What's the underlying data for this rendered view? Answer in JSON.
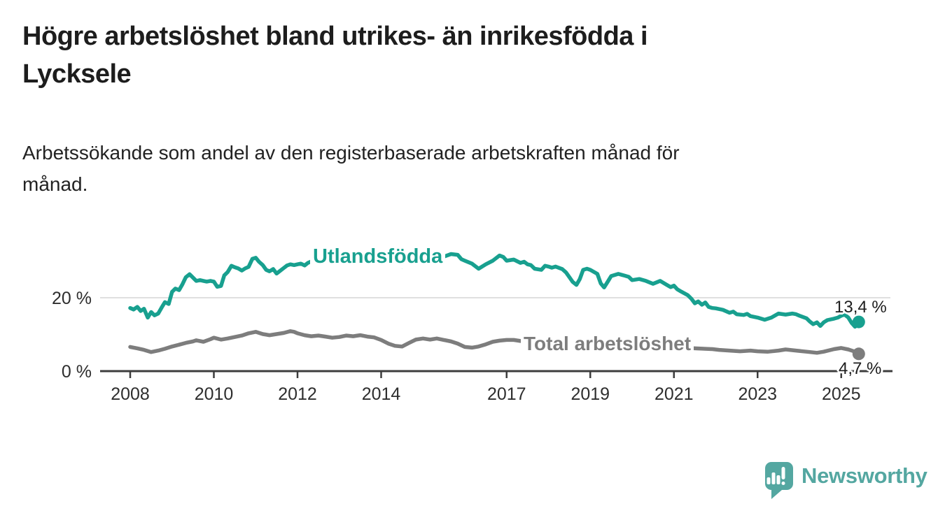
{
  "header": {
    "title": "Högre arbetslöshet bland utrikes- än inrikesfödda i\nLycksele",
    "subtitle": "Arbetssökande som andel av den registerbaserade arbetskraften månad för\nmånad."
  },
  "chart_data": {
    "type": "line",
    "title": "Högre arbetslöshet bland utrikes- än inrikesfödda i Lycksele",
    "subtitle": "Arbetssökande som andel av den registerbaserade arbetskraften månad för månad.",
    "unit": "%",
    "x_axis": {
      "ticks": [
        2008,
        2010,
        2012,
        2014,
        2017,
        2019,
        2021,
        2023,
        2025
      ],
      "range": [
        2008,
        2025.7
      ]
    },
    "y_axis": {
      "ticks": [
        {
          "value": 0,
          "label": "0 %"
        },
        {
          "value": 20,
          "label": "20 %"
        }
      ],
      "range": [
        0,
        34
      ]
    },
    "grid": "horizontal, only at 20 %",
    "legend": "inline series labels",
    "series": [
      {
        "name": "Utlandsfödda",
        "color": "#18a08f",
        "end_label": "13,4 %",
        "end_value": 13.4,
        "points": [
          [
            2008.0,
            17.2
          ],
          [
            2008.08,
            16.8
          ],
          [
            2008.17,
            17.5
          ],
          [
            2008.25,
            16.4
          ],
          [
            2008.33,
            17.0
          ],
          [
            2008.42,
            14.6
          ],
          [
            2008.5,
            16.1
          ],
          [
            2008.58,
            15.2
          ],
          [
            2008.67,
            15.7
          ],
          [
            2008.75,
            17.3
          ],
          [
            2008.83,
            18.8
          ],
          [
            2008.92,
            18.3
          ],
          [
            2009.0,
            21.6
          ],
          [
            2009.08,
            22.5
          ],
          [
            2009.17,
            22.1
          ],
          [
            2009.25,
            23.7
          ],
          [
            2009.33,
            25.6
          ],
          [
            2009.42,
            26.4
          ],
          [
            2009.5,
            25.5
          ],
          [
            2009.58,
            24.6
          ],
          [
            2009.67,
            24.8
          ],
          [
            2009.75,
            24.6
          ],
          [
            2009.83,
            24.4
          ],
          [
            2009.92,
            24.6
          ],
          [
            2010.0,
            24.4
          ],
          [
            2010.08,
            23.0
          ],
          [
            2010.17,
            23.2
          ],
          [
            2010.25,
            26.1
          ],
          [
            2010.33,
            27.0
          ],
          [
            2010.42,
            28.7
          ],
          [
            2010.5,
            28.3
          ],
          [
            2010.58,
            28.0
          ],
          [
            2010.67,
            27.4
          ],
          [
            2010.75,
            28.0
          ],
          [
            2010.83,
            28.4
          ],
          [
            2010.92,
            30.6
          ],
          [
            2011.0,
            30.9
          ],
          [
            2011.08,
            29.8
          ],
          [
            2011.17,
            28.9
          ],
          [
            2011.25,
            27.6
          ],
          [
            2011.33,
            27.2
          ],
          [
            2011.42,
            27.8
          ],
          [
            2011.5,
            26.6
          ],
          [
            2011.58,
            27.3
          ],
          [
            2011.67,
            28.1
          ],
          [
            2011.75,
            28.8
          ],
          [
            2011.83,
            29.1
          ],
          [
            2011.92,
            28.9
          ],
          [
            2012.0,
            29.1
          ],
          [
            2012.08,
            29.3
          ],
          [
            2012.17,
            28.8
          ],
          [
            2012.25,
            29.5
          ],
          [
            2012.33,
            29.9
          ],
          [
            2012.5,
            30.5
          ],
          [
            2012.67,
            29.7
          ],
          [
            2012.83,
            29.1
          ],
          [
            2013.0,
            29.6
          ],
          [
            2013.17,
            30.3
          ],
          [
            2013.33,
            29.5
          ],
          [
            2013.5,
            28.7
          ],
          [
            2013.67,
            29.3
          ],
          [
            2013.83,
            30.1
          ],
          [
            2014.0,
            29.7
          ],
          [
            2014.17,
            30.5
          ],
          [
            2014.33,
            29.1
          ],
          [
            2014.5,
            28.5
          ],
          [
            2014.67,
            29.3
          ],
          [
            2014.83,
            29.9
          ],
          [
            2015.0,
            30.3
          ],
          [
            2015.17,
            30.9
          ],
          [
            2015.33,
            30.1
          ],
          [
            2015.5,
            31.2
          ],
          [
            2015.67,
            31.9
          ],
          [
            2015.83,
            31.7
          ],
          [
            2015.92,
            30.5
          ],
          [
            2016.0,
            30.1
          ],
          [
            2016.17,
            29.3
          ],
          [
            2016.33,
            27.9
          ],
          [
            2016.5,
            29.1
          ],
          [
            2016.67,
            30.1
          ],
          [
            2016.83,
            31.5
          ],
          [
            2016.92,
            31.1
          ],
          [
            2017.0,
            30.1
          ],
          [
            2017.17,
            30.4
          ],
          [
            2017.33,
            29.5
          ],
          [
            2017.42,
            29.8
          ],
          [
            2017.5,
            29.1
          ],
          [
            2017.58,
            28.9
          ],
          [
            2017.67,
            27.9
          ],
          [
            2017.83,
            27.6
          ],
          [
            2017.92,
            28.7
          ],
          [
            2018.0,
            28.5
          ],
          [
            2018.08,
            28.2
          ],
          [
            2018.17,
            28.5
          ],
          [
            2018.33,
            27.8
          ],
          [
            2018.42,
            26.9
          ],
          [
            2018.5,
            25.6
          ],
          [
            2018.58,
            24.3
          ],
          [
            2018.67,
            23.5
          ],
          [
            2018.75,
            25.1
          ],
          [
            2018.83,
            27.6
          ],
          [
            2018.92,
            27.9
          ],
          [
            2019.0,
            27.6
          ],
          [
            2019.17,
            26.5
          ],
          [
            2019.25,
            23.9
          ],
          [
            2019.33,
            22.8
          ],
          [
            2019.42,
            24.4
          ],
          [
            2019.5,
            25.9
          ],
          [
            2019.67,
            26.5
          ],
          [
            2019.83,
            26.0
          ],
          [
            2019.92,
            25.7
          ],
          [
            2020.0,
            24.8
          ],
          [
            2020.17,
            25.1
          ],
          [
            2020.33,
            24.6
          ],
          [
            2020.5,
            23.8
          ],
          [
            2020.67,
            24.6
          ],
          [
            2020.83,
            23.5
          ],
          [
            2020.92,
            22.9
          ],
          [
            2021.0,
            23.3
          ],
          [
            2021.08,
            22.3
          ],
          [
            2021.17,
            21.7
          ],
          [
            2021.33,
            20.7
          ],
          [
            2021.42,
            19.7
          ],
          [
            2021.5,
            18.5
          ],
          [
            2021.58,
            19.0
          ],
          [
            2021.67,
            18.1
          ],
          [
            2021.75,
            18.7
          ],
          [
            2021.83,
            17.5
          ],
          [
            2021.92,
            17.2
          ],
          [
            2022.0,
            17.1
          ],
          [
            2022.17,
            16.7
          ],
          [
            2022.33,
            15.9
          ],
          [
            2022.42,
            16.2
          ],
          [
            2022.5,
            15.5
          ],
          [
            2022.67,
            15.3
          ],
          [
            2022.75,
            15.6
          ],
          [
            2022.83,
            15.0
          ],
          [
            2023.0,
            14.6
          ],
          [
            2023.17,
            14.0
          ],
          [
            2023.33,
            14.6
          ],
          [
            2023.5,
            15.7
          ],
          [
            2023.67,
            15.4
          ],
          [
            2023.83,
            15.7
          ],
          [
            2023.92,
            15.5
          ],
          [
            2024.0,
            15.1
          ],
          [
            2024.17,
            14.4
          ],
          [
            2024.25,
            13.5
          ],
          [
            2024.33,
            12.8
          ],
          [
            2024.42,
            13.3
          ],
          [
            2024.5,
            12.3
          ],
          [
            2024.58,
            13.3
          ],
          [
            2024.67,
            13.9
          ],
          [
            2024.83,
            14.3
          ],
          [
            2024.92,
            14.6
          ],
          [
            2025.0,
            15.1
          ],
          [
            2025.08,
            15.4
          ],
          [
            2025.17,
            14.6
          ],
          [
            2025.25,
            13.1
          ],
          [
            2025.33,
            12.1
          ],
          [
            2025.42,
            13.4
          ]
        ]
      },
      {
        "name": "Total arbetslöshet",
        "color": "#7d7d7d",
        "end_label": "4,7 %",
        "end_value": 4.7,
        "points": [
          [
            2008.0,
            6.6
          ],
          [
            2008.17,
            6.2
          ],
          [
            2008.33,
            5.8
          ],
          [
            2008.5,
            5.2
          ],
          [
            2008.67,
            5.6
          ],
          [
            2008.83,
            6.1
          ],
          [
            2009.0,
            6.7
          ],
          [
            2009.17,
            7.2
          ],
          [
            2009.33,
            7.7
          ],
          [
            2009.5,
            8.1
          ],
          [
            2009.58,
            8.4
          ],
          [
            2009.75,
            8.0
          ],
          [
            2009.92,
            8.7
          ],
          [
            2010.0,
            9.1
          ],
          [
            2010.17,
            8.6
          ],
          [
            2010.33,
            8.9
          ],
          [
            2010.5,
            9.3
          ],
          [
            2010.67,
            9.7
          ],
          [
            2010.83,
            10.3
          ],
          [
            2011.0,
            10.7
          ],
          [
            2011.17,
            10.1
          ],
          [
            2011.33,
            9.8
          ],
          [
            2011.5,
            10.1
          ],
          [
            2011.67,
            10.4
          ],
          [
            2011.83,
            10.9
          ],
          [
            2011.92,
            10.7
          ],
          [
            2012.0,
            10.3
          ],
          [
            2012.17,
            9.8
          ],
          [
            2012.33,
            9.5
          ],
          [
            2012.5,
            9.7
          ],
          [
            2012.67,
            9.4
          ],
          [
            2012.83,
            9.1
          ],
          [
            2013.0,
            9.3
          ],
          [
            2013.17,
            9.7
          ],
          [
            2013.33,
            9.5
          ],
          [
            2013.5,
            9.8
          ],
          [
            2013.67,
            9.4
          ],
          [
            2013.83,
            9.2
          ],
          [
            2014.0,
            8.5
          ],
          [
            2014.17,
            7.5
          ],
          [
            2014.33,
            6.9
          ],
          [
            2014.5,
            6.7
          ],
          [
            2014.67,
            7.7
          ],
          [
            2014.83,
            8.6
          ],
          [
            2015.0,
            8.9
          ],
          [
            2015.17,
            8.6
          ],
          [
            2015.33,
            8.9
          ],
          [
            2015.5,
            8.5
          ],
          [
            2015.67,
            8.1
          ],
          [
            2015.83,
            7.5
          ],
          [
            2016.0,
            6.6
          ],
          [
            2016.17,
            6.4
          ],
          [
            2016.33,
            6.7
          ],
          [
            2016.5,
            7.3
          ],
          [
            2016.67,
            8.0
          ],
          [
            2016.83,
            8.3
          ],
          [
            2017.0,
            8.5
          ],
          [
            2017.17,
            8.5
          ],
          [
            2017.33,
            8.2
          ],
          [
            2017.58,
            8.0
          ],
          [
            2018.0,
            7.7
          ],
          [
            2018.5,
            7.3
          ],
          [
            2019.0,
            7.1
          ],
          [
            2019.5,
            6.9
          ],
          [
            2020.0,
            6.7
          ],
          [
            2020.5,
            6.6
          ],
          [
            2021.0,
            6.4
          ],
          [
            2021.5,
            6.2
          ],
          [
            2021.92,
            6.0
          ],
          [
            2022.08,
            5.8
          ],
          [
            2022.33,
            5.6
          ],
          [
            2022.58,
            5.4
          ],
          [
            2022.83,
            5.6
          ],
          [
            2023.0,
            5.4
          ],
          [
            2023.25,
            5.3
          ],
          [
            2023.5,
            5.6
          ],
          [
            2023.67,
            5.9
          ],
          [
            2023.92,
            5.6
          ],
          [
            2024.17,
            5.3
          ],
          [
            2024.42,
            5.0
          ],
          [
            2024.58,
            5.3
          ],
          [
            2024.83,
            6.0
          ],
          [
            2025.0,
            6.3
          ],
          [
            2025.17,
            5.9
          ],
          [
            2025.33,
            5.3
          ],
          [
            2025.42,
            4.7
          ]
        ]
      }
    ]
  },
  "footer": {
    "brand": "Newsworthy"
  },
  "colors": {
    "teal": "#18a08f",
    "gray": "#7d7d7d",
    "logo_teal": "#54a7a1",
    "text": "#1d1d1d",
    "axis": "#3d3d3d",
    "grid": "#e0e0e0",
    "background": "#ffffff"
  }
}
